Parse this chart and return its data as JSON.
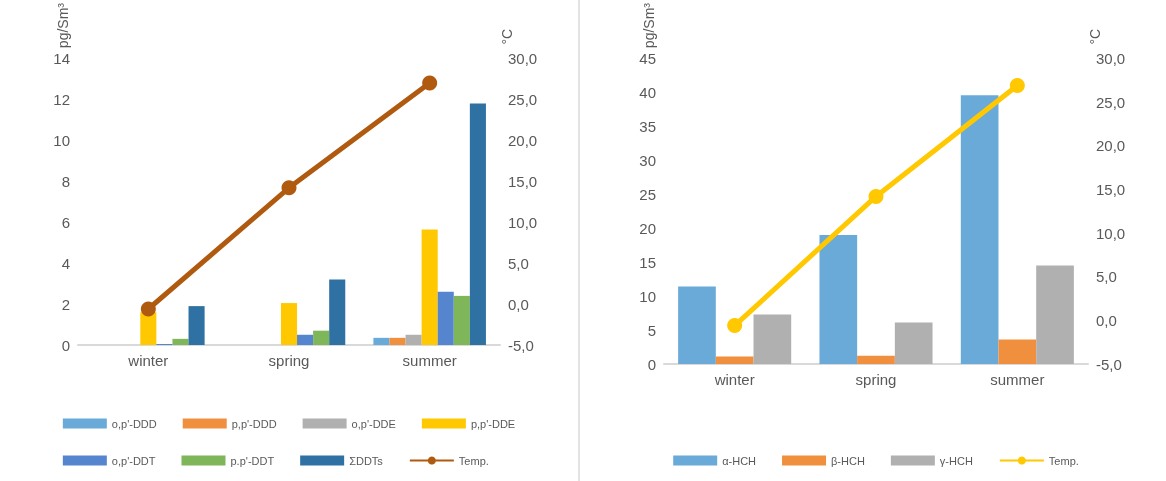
{
  "chart_data": [
    {
      "type": "bar",
      "ylabel": "pg/Sm³",
      "y2label": "°C",
      "categories": [
        "winter",
        "spring",
        "summer"
      ],
      "ylim": [
        0,
        14
      ],
      "yticks": [
        0,
        2,
        4,
        6,
        8,
        10,
        12,
        14
      ],
      "y2lim": [
        -5,
        30
      ],
      "y2ticks": [
        {
          "value": -5,
          "label": "-5,0"
        },
        {
          "value": 0,
          "label": "0,0"
        },
        {
          "value": 5,
          "label": "5,0"
        },
        {
          "value": 10,
          "label": "10,0"
        },
        {
          "value": 15,
          "label": "15,0"
        },
        {
          "value": 20,
          "label": "20,0"
        },
        {
          "value": 25,
          "label": "25,0"
        },
        {
          "value": 30,
          "label": "30,0"
        }
      ],
      "grid": false,
      "legend": "bottom",
      "series": [
        {
          "name": "o,p'-DDD",
          "color": "#6aaad9",
          "values": [
            0,
            0,
            0.35
          ]
        },
        {
          "name": "p,p'-DDD",
          "color": "#f08f3e",
          "values": [
            0,
            0,
            0.35
          ]
        },
        {
          "name": "o,p'-DDE",
          "color": "#b0b0b0",
          "values": [
            0,
            0,
            0.5
          ]
        },
        {
          "name": "p,p'-DDE",
          "color": "#ffc800",
          "values": [
            1.6,
            2.05,
            5.65
          ]
        },
        {
          "name": "o,p'-DDT",
          "color": "#5585cf",
          "values": [
            0.05,
            0.5,
            2.6
          ]
        },
        {
          "name": "p.p'-DDT",
          "color": "#7fb65a",
          "values": [
            0.3,
            0.7,
            2.4
          ]
        },
        {
          "name": "ΣDDTs",
          "color": "#2e71a2",
          "values": [
            1.9,
            3.2,
            11.8
          ]
        },
        {
          "name": "Temp.",
          "type": "line",
          "axis": "y2",
          "marker": "circle",
          "color": "#b05a10",
          "values": [
            -0.6,
            14.2,
            27.0
          ]
        }
      ]
    },
    {
      "type": "bar",
      "ylabel": "pg/Sm³",
      "y2label": "°C",
      "categories": [
        "winter",
        "spring",
        "summer"
      ],
      "ylim": [
        0,
        45
      ],
      "yticks": [
        0,
        5,
        10,
        15,
        20,
        25,
        30,
        35,
        40,
        45
      ],
      "y2lim": [
        -5,
        30
      ],
      "y2ticks": [
        {
          "value": -5,
          "label": "-5,0"
        },
        {
          "value": 0,
          "label": "0,0"
        },
        {
          "value": 5,
          "label": "5,0"
        },
        {
          "value": 10,
          "label": "10,0"
        },
        {
          "value": 15,
          "label": "15,0"
        },
        {
          "value": 20,
          "label": "20,0"
        },
        {
          "value": 25,
          "label": "25,0"
        },
        {
          "value": 30,
          "label": "30,0"
        }
      ],
      "grid": false,
      "legend": "bottom",
      "series": [
        {
          "name": "α-HCH",
          "color": "#6aaad9",
          "values": [
            11.4,
            19.0,
            39.6
          ]
        },
        {
          "name": "β-HCH",
          "color": "#f08f3e",
          "values": [
            1.1,
            1.2,
            3.6
          ]
        },
        {
          "name": "γ-HCH",
          "color": "#b0b0b0",
          "values": [
            7.3,
            6.1,
            14.5
          ]
        },
        {
          "name": "Temp.",
          "type": "line",
          "axis": "y2",
          "marker": "circle",
          "color": "#ffc800",
          "values": [
            -0.6,
            14.2,
            26.9
          ]
        }
      ]
    }
  ]
}
